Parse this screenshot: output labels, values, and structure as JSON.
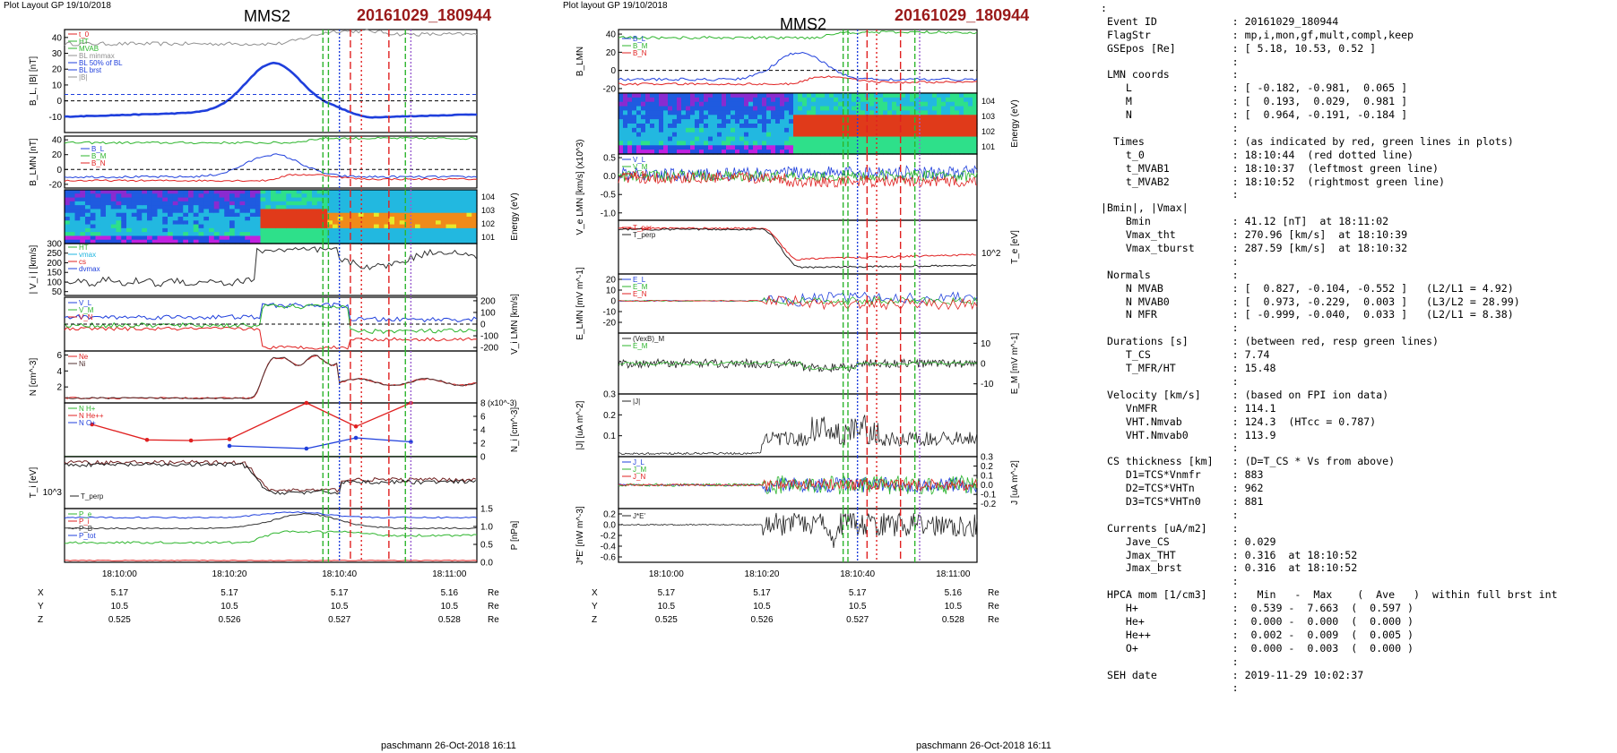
{
  "header": {
    "left_layout_label": "Plot Layout GP 19/10/2018",
    "mid_layout_label": "Plot layout GP 19/10/2018",
    "spacecraft": "MMS2",
    "event_id": "20161029_180944"
  },
  "footer": {
    "signature": "paschmann 26-Oct-2018 16:11"
  },
  "colors": {
    "event_red": "#9a1a1a",
    "b_blue": "#1f3fdc",
    "green": "#2db52d",
    "red": "#e02020",
    "grey": "#808080"
  },
  "chart_data": [
    {
      "type": "line",
      "panel": "left",
      "time_ticks": [
        "18:10:00",
        "18:10:20",
        "18:10:40",
        "18:11:00"
      ],
      "panels": [
        {
          "id": "BL",
          "ylabel": "B_L, |B| [nT]",
          "yticks": [
            "40",
            "30",
            "20",
            "10",
            "0",
            "-10"
          ],
          "ylim": [
            -20,
            45
          ],
          "legend": [
            "t_0",
            "HT",
            "MVAB",
            "BL minmax",
            "BL 50% of BL",
            "BL brst",
            "|B|"
          ]
        },
        {
          "id": "BLMN",
          "ylabel": "B_LMN [nT]",
          "yticks": [
            "40",
            "20",
            "0",
            "-20"
          ],
          "ylim": [
            -25,
            45
          ],
          "legend": [
            "B_L",
            "B_M",
            "B_N"
          ]
        },
        {
          "id": "spec",
          "ylabel": "Energy (eV)",
          "yticks": [
            "10^4",
            "10^3",
            "10^2",
            "10^1"
          ],
          "type": "heatmap"
        },
        {
          "id": "Vi",
          "ylabel": "| V_i | [km/s]",
          "yticks": [
            "300",
            "250",
            "200",
            "150",
            "100",
            "50"
          ],
          "ylim": [
            30,
            300
          ],
          "legend": [
            "HT",
            "vmax",
            "cs",
            "dvmax"
          ]
        },
        {
          "id": "ViLMN",
          "ylabel": "V_i LMN [km/s]",
          "yticks": [
            "200",
            "100",
            "0",
            "-100",
            "-200"
          ],
          "ylim": [
            -230,
            230
          ],
          "legend": [
            "V_L",
            "V_M",
            "V_N"
          ]
        },
        {
          "id": "N",
          "ylabel": "N [cm^-3]",
          "yticks": [
            "6",
            "4",
            "2"
          ],
          "ylim": [
            0,
            6.5
          ],
          "legend": [
            "Ne",
            "Ni"
          ]
        },
        {
          "id": "Ni",
          "ylabel": "N_i [cm^-3]",
          "yticks": [
            "8",
            "6",
            "4",
            "2",
            "0"
          ],
          "ylim": [
            0,
            8
          ],
          "multiplier": "(x10^-3)",
          "legend": [
            "N H+",
            "N He++",
            "N O+"
          ],
          "series": [
            {
              "name": "He++",
              "color": "#e02020",
              "x": [
                "18:09:55",
                "18:10:05",
                "18:10:13",
                "18:10:20",
                "18:10:34",
                "18:10:43",
                "18:10:53"
              ],
              "values": [
                4.8,
                2.5,
                2.4,
                2.6,
                8.0,
                4.5,
                8.0
              ]
            },
            {
              "name": "O+",
              "color": "#1f3fdc",
              "x": [
                "18:10:20",
                "18:10:34",
                "18:10:43",
                "18:10:53"
              ],
              "values": [
                1.6,
                1.2,
                2.8,
                2.2
              ]
            }
          ]
        },
        {
          "id": "Ti",
          "ylabel": "T_i [eV]",
          "yticks": [
            "10^3"
          ],
          "legend": [
            "T_perp"
          ]
        },
        {
          "id": "P",
          "ylabel": "P [nPa]",
          "yticks": [
            "1.5",
            "1.0",
            "0.5",
            "0.0"
          ],
          "ylim": [
            0,
            1.5
          ],
          "legend": [
            "P_e",
            "P_i",
            "P_B",
            "P_tot"
          ]
        }
      ],
      "position_table": {
        "rows": [
          {
            "label": "X",
            "values": [
              "5.17",
              "5.17",
              "5.17",
              "5.16"
            ],
            "unit": "Re"
          },
          {
            "label": "Y",
            "values": [
              "10.5",
              "10.5",
              "10.5",
              "10.5"
            ],
            "unit": "Re"
          },
          {
            "label": "Z",
            "values": [
              "0.525",
              "0.526",
              "0.527",
              "0.528"
            ],
            "unit": "Re"
          }
        ]
      }
    },
    {
      "type": "line",
      "panel": "middle",
      "time_ticks": [
        "18:10:00",
        "18:10:20",
        "18:10:40",
        "18:11:00"
      ],
      "panels": [
        {
          "id": "BLMN",
          "ylabel": "B_LMN",
          "yticks": [
            "40",
            "20",
            "0",
            "-20"
          ],
          "ylim": [
            -25,
            45
          ],
          "legend": [
            "B_L",
            "B_M",
            "B_N"
          ]
        },
        {
          "id": "spec",
          "ylabel": "Energy (eV)",
          "yticks": [
            "10^4",
            "10^3",
            "10^2",
            "10^1"
          ],
          "type": "heatmap"
        },
        {
          "id": "VeLMN",
          "ylabel": "V_e LMN [km/s] (x10^3)",
          "yticks": [
            "0.5",
            "0.0",
            "-0.5",
            "-1.0"
          ],
          "ylim": [
            -1.2,
            0.6
          ],
          "legend": [
            "V_L",
            "V_M",
            "V_N"
          ]
        },
        {
          "id": "Te",
          "ylabel": "T_e [eV]",
          "yticks": [
            "10^2"
          ],
          "legend": [
            "T_par",
            "T_perp"
          ]
        },
        {
          "id": "ELMN",
          "ylabel": "E_LMN [mV m^-1]",
          "yticks": [
            "20",
            "10",
            "0",
            "-10",
            "-20"
          ],
          "ylim": [
            -30,
            25
          ],
          "legend": [
            "E_L",
            "E_M",
            "E_N"
          ]
        },
        {
          "id": "EM",
          "ylabel": "E_M [mV m^-1]",
          "yticks": [
            "10",
            "0",
            "-10"
          ],
          "ylim": [
            -15,
            15
          ],
          "legend": [
            "(VexB)_M",
            "E_M"
          ]
        },
        {
          "id": "J",
          "ylabel": "|J| [uA m^-2]",
          "yticks": [
            "0.3",
            "0.2",
            "0.1"
          ],
          "ylim": [
            0,
            0.3
          ],
          "legend": [
            "|J|"
          ]
        },
        {
          "id": "JLMN",
          "ylabel": "J [uA m^-2]",
          "yticks": [
            "0.3",
            "0.2",
            "0.1",
            "0.0",
            "-0.1",
            "-0.2"
          ],
          "ylim": [
            -0.25,
            0.3
          ],
          "legend": [
            "J_L",
            "J_M",
            "J_N"
          ]
        },
        {
          "id": "JE",
          "ylabel": "J*E' [nW m^-3]",
          "yticks": [
            "0.2",
            "0.0",
            "-0.2",
            "-0.4",
            "-0.6"
          ],
          "ylim": [
            -0.7,
            0.3
          ],
          "legend": [
            "J*E'"
          ]
        }
      ],
      "position_table": {
        "rows": [
          {
            "label": "X",
            "values": [
              "5.17",
              "5.17",
              "5.17",
              "5.16"
            ],
            "unit": "Re"
          },
          {
            "label": "Y",
            "values": [
              "10.5",
              "10.5",
              "10.5",
              "10.5"
            ],
            "unit": "Re"
          },
          {
            "label": "Z",
            "values": [
              "0.525",
              "0.526",
              "0.527",
              "0.528"
            ],
            "unit": "Re"
          }
        ]
      }
    }
  ],
  "info_lines": [
    {
      "label": ":",
      "sep": "",
      "val": ""
    },
    {
      "label": " Event ID",
      "sep": ": ",
      "val": "20161029_180944"
    },
    {
      "label": " FlagStr",
      "sep": ": ",
      "val": "mp,i,mon,gf,mult,compl,keep"
    },
    {
      "label": " GSEpos [Re]",
      "sep": ": ",
      "val": "[ 5.18, 10.53, 0.52 ]"
    },
    {
      "label": "",
      "sep": ":",
      "val": ""
    },
    {
      "label": " LMN coords",
      "sep": ": ",
      "val": ""
    },
    {
      "label": "    L",
      "sep": ": ",
      "val": "[ -0.182, -0.981,  0.065 ]"
    },
    {
      "label": "    M",
      "sep": ": ",
      "val": "[  0.193,  0.029,  0.981 ]"
    },
    {
      "label": "    N",
      "sep": ": ",
      "val": "[  0.964, -0.191, -0.184 ]"
    },
    {
      "label": "",
      "sep": ":",
      "val": ""
    },
    {
      "label": "  Times",
      "sep": ": ",
      "val": "(as indicated by red, green lines in plots)"
    },
    {
      "label": "    t_0",
      "sep": ": ",
      "val": "18:10:44  (red dotted line)"
    },
    {
      "label": "    t_MVAB1",
      "sep": ": ",
      "val": "18:10:37  (leftmost green line)"
    },
    {
      "label": "    t_MVAB2",
      "sep": ": ",
      "val": "18:10:52  (rightmost green line)"
    },
    {
      "label": "",
      "sep": ":",
      "val": ""
    },
    {
      "label": "|Bmin|, |Vmax|",
      "sep": "",
      "val": ""
    },
    {
      "label": "    Bmin",
      "sep": ": ",
      "val": "41.12 [nT]  at 18:11:02"
    },
    {
      "label": "    Vmax_tht",
      "sep": ": ",
      "val": "270.96 [km/s]  at 18:10:39"
    },
    {
      "label": "    Vmax_tburst",
      "sep": ": ",
      "val": "287.59 [km/s]  at 18:10:32"
    },
    {
      "label": "",
      "sep": ":",
      "val": ""
    },
    {
      "label": " Normals",
      "sep": ": ",
      "val": ""
    },
    {
      "label": "    N MVAB",
      "sep": ": ",
      "val": "[  0.827, -0.104, -0.552 ]   (L2/L1 = 4.92)"
    },
    {
      "label": "    N MVAB0",
      "sep": ": ",
      "val": "[  0.973, -0.229,  0.003 ]   (L3/L2 = 28.99)"
    },
    {
      "label": "    N MFR",
      "sep": ": ",
      "val": "[ -0.999, -0.040,  0.033 ]   (L2/L1 = 8.38)"
    },
    {
      "label": "",
      "sep": ":",
      "val": ""
    },
    {
      "label": " Durations [s]",
      "sep": ": ",
      "val": "(between red, resp green lines)"
    },
    {
      "label": "    T_CS",
      "sep": ": ",
      "val": "7.74"
    },
    {
      "label": "    T_MFR/HT",
      "sep": ": ",
      "val": "15.48"
    },
    {
      "label": "",
      "sep": ":",
      "val": ""
    },
    {
      "label": " Velocity [km/s]",
      "sep": ": ",
      "val": "(based on FPI ion data)"
    },
    {
      "label": "    VnMFR",
      "sep": ": ",
      "val": "114.1"
    },
    {
      "label": "    VHT.Nmvab",
      "sep": ": ",
      "val": "124.3  (HTcc = 0.787)"
    },
    {
      "label": "    VHT.Nmvab0",
      "sep": ": ",
      "val": "113.9"
    },
    {
      "label": "",
      "sep": ":",
      "val": ""
    },
    {
      "label": " CS thickness [km]",
      "sep": ": ",
      "val": "(D=T_CS * Vs from above)"
    },
    {
      "label": "    D1=TCS*Vnmfr",
      "sep": ": ",
      "val": "883"
    },
    {
      "label": "    D2=TCS*VHTn",
      "sep": ": ",
      "val": "962"
    },
    {
      "label": "    D3=TCS*VHTn0",
      "sep": ": ",
      "val": "881"
    },
    {
      "label": "",
      "sep": ":",
      "val": ""
    },
    {
      "label": " Currents [uA/m2]",
      "sep": ": ",
      "val": ""
    },
    {
      "label": "    Jave_CS",
      "sep": ": ",
      "val": "0.029"
    },
    {
      "label": "    Jmax_THT",
      "sep": ": ",
      "val": "0.316  at 18:10:52"
    },
    {
      "label": "    Jmax_brst",
      "sep": ": ",
      "val": "0.316  at 18:10:52"
    },
    {
      "label": "",
      "sep": ":",
      "val": ""
    },
    {
      "label": " HPCA mom [1/cm3]",
      "sep": ": ",
      "val": "  Min   -  Max    (  Ave   )  within full brst int"
    },
    {
      "label": "    H+",
      "sep": ": ",
      "val": " 0.539 -  7.663  (  0.597 )"
    },
    {
      "label": "    He+",
      "sep": ": ",
      "val": " 0.000 -  0.000  (  0.000 )"
    },
    {
      "label": "    He++",
      "sep": ": ",
      "val": " 0.002 -  0.009  (  0.005 )"
    },
    {
      "label": "    O+",
      "sep": ": ",
      "val": " 0.000 -  0.003  (  0.000 )"
    },
    {
      "label": "",
      "sep": ":",
      "val": ""
    },
    {
      "label": " SEH date",
      "sep": ": ",
      "val": "2019-11-29 10:02:37"
    },
    {
      "label": "",
      "sep": ":",
      "val": ""
    }
  ]
}
